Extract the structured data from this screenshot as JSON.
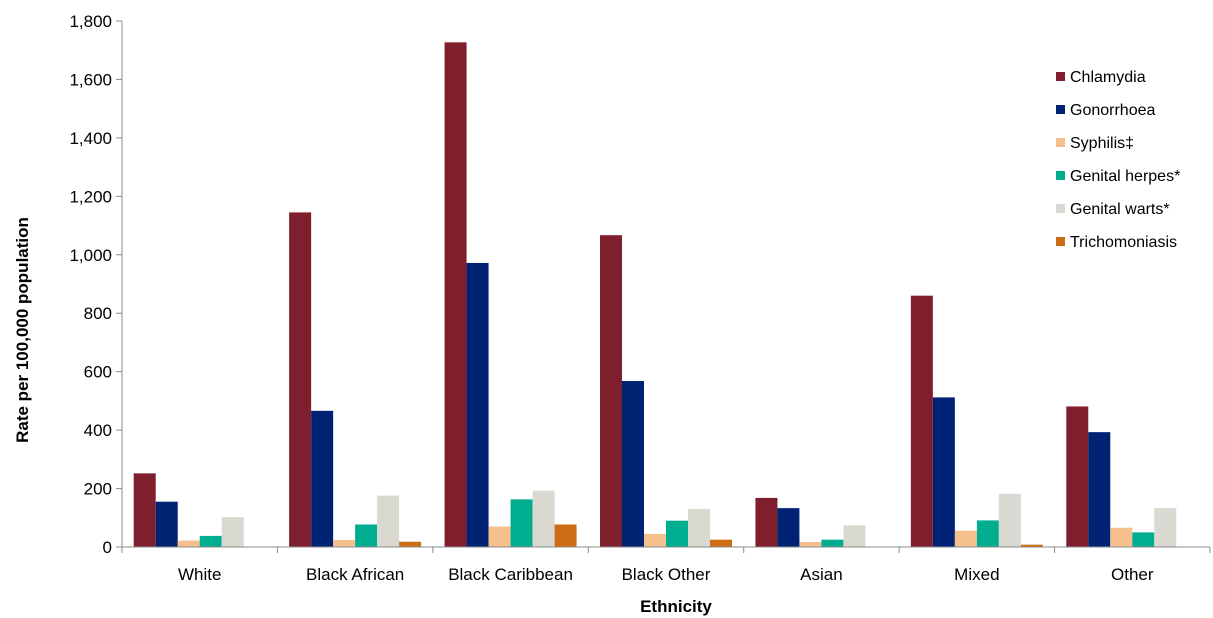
{
  "chart_data": {
    "type": "bar",
    "title": "",
    "xlabel": "Ethnicity",
    "ylabel": "Rate per 100,000 population",
    "ylim": [
      0,
      1800
    ],
    "yticks": [
      0,
      200,
      400,
      600,
      800,
      1000,
      1200,
      1400,
      1600,
      1800
    ],
    "ytick_labels": [
      "0",
      "200",
      "400",
      "600",
      "800",
      "1,000",
      "1,200",
      "1,400",
      "1,600",
      "1,800"
    ],
    "grid": false,
    "legend_position": "right",
    "categories": [
      "White",
      "Black African",
      "Black Caribbean",
      "Black Other",
      "Asian",
      "Mixed",
      "Other"
    ],
    "series": [
      {
        "name": "Chlamydia",
        "color": "#7f1f2e",
        "values": [
          252,
          1145,
          1727,
          1067,
          168,
          860,
          481
        ]
      },
      {
        "name": "Gonorrhoea",
        "color": "#002273",
        "values": [
          155,
          466,
          972,
          568,
          133,
          512,
          393
        ]
      },
      {
        "name": "Syphilis‡",
        "color": "#f5c08e",
        "values": [
          22,
          24,
          70,
          45,
          17,
          56,
          66
        ]
      },
      {
        "name": "Genital herpes*",
        "color": "#00ad8e",
        "values": [
          38,
          77,
          163,
          90,
          25,
          91,
          50
        ]
      },
      {
        "name": "Genital warts*",
        "color": "#d9d9d2",
        "values": [
          102,
          176,
          193,
          130,
          74,
          182,
          133
        ]
      },
      {
        "name": "Trichomoniasis",
        "color": "#cc6d15",
        "values": [
          0,
          18,
          77,
          25,
          0,
          8,
          0
        ]
      }
    ]
  }
}
